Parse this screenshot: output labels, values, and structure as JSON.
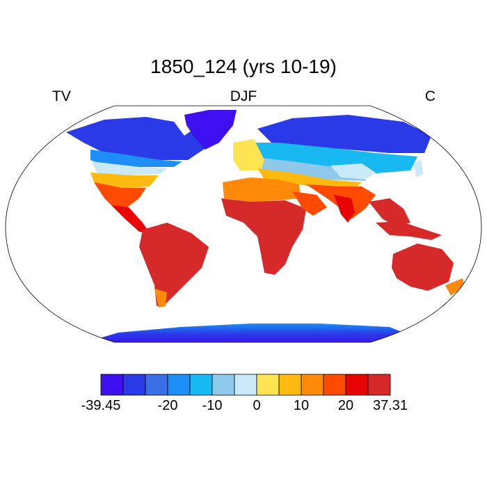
{
  "title": "1850_124 (yrs 10-19)",
  "left_label": "TV",
  "center_label": "DJF",
  "right_label": "C",
  "colorbar": {
    "colors": [
      "#3e10f0",
      "#2a3ae8",
      "#3a6fe8",
      "#1c8ef5",
      "#18b9f2",
      "#8ec9ec",
      "#c9e8f8",
      "#ffe452",
      "#ffba10",
      "#ff8a0a",
      "#ff4a02",
      "#e80405",
      "#d62a2a"
    ],
    "tick_labels": [
      "-39.45",
      "-20",
      "-10",
      "0",
      "10",
      "20",
      "37.31"
    ]
  }
}
